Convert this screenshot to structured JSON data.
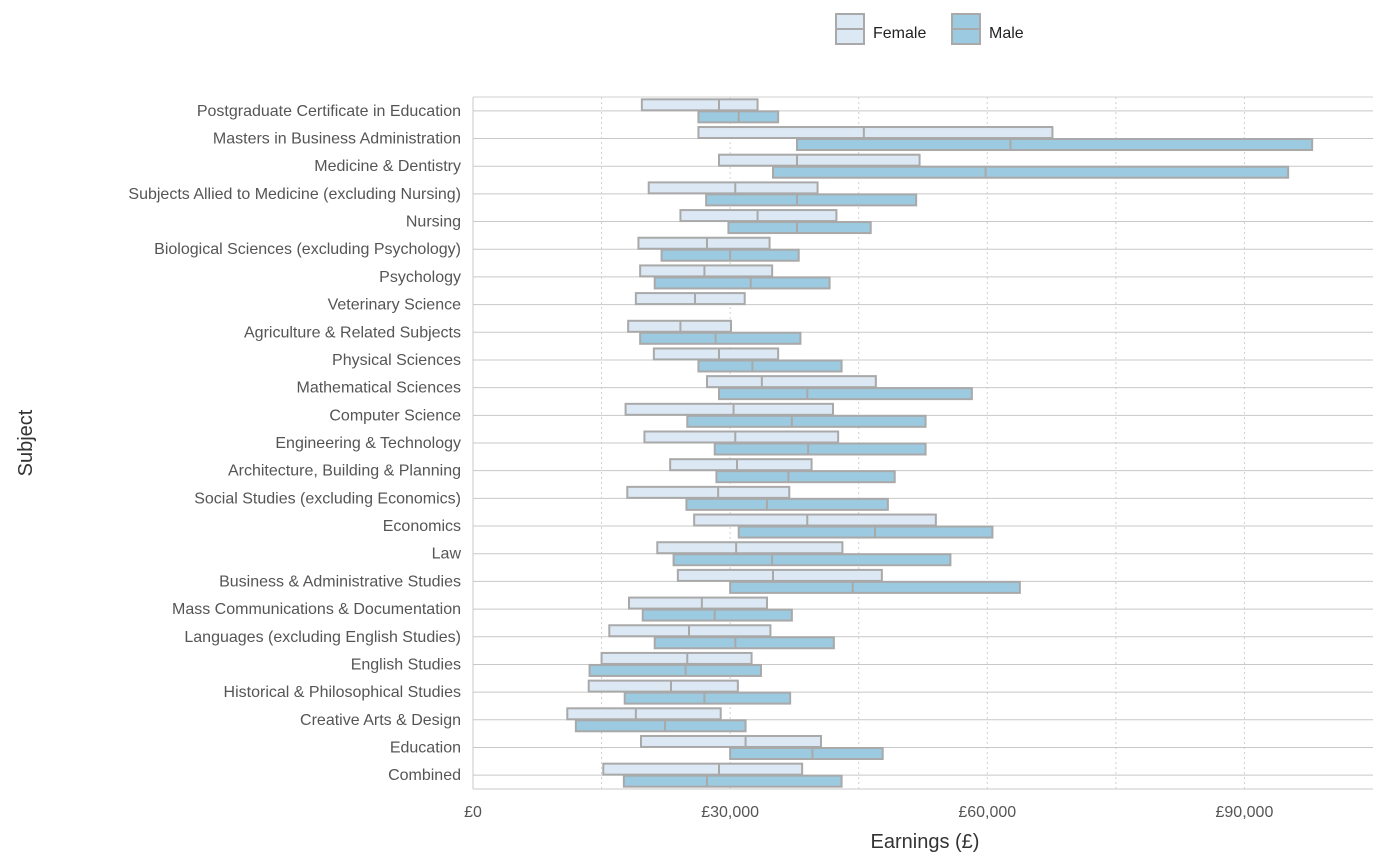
{
  "chart_data": {
    "type": "bar",
    "chart_style": "horizontal grouped range bars (lower quartile, median, upper quartile)",
    "xlabel": "Earnings (£)",
    "ylabel": "Subject",
    "xlim": [
      0,
      105000
    ],
    "x_ticks": [
      0,
      30000,
      60000,
      90000
    ],
    "x_tick_labels": [
      "£0",
      "£30,000",
      "£60,000",
      "£90,000"
    ],
    "grid": "dotted vertical lines at 15000 intervals, solid horizontal lines per category",
    "legend_position": "top",
    "categories": [
      "Postgraduate Certificate in Education",
      "Masters in Business Administration",
      "Medicine & Dentistry",
      "Subjects Allied to Medicine (excluding Nursing)",
      "Nursing",
      "Biological Sciences (excluding Psychology)",
      "Psychology",
      "Veterinary Science",
      "Agriculture & Related Subjects",
      "Physical Sciences",
      "Mathematical Sciences",
      "Computer Science",
      "Engineering & Technology",
      "Architecture, Building & Planning",
      "Social Studies (excluding Economics)",
      "Economics",
      "Law",
      "Business & Administrative Studies",
      "Mass Communications & Documentation",
      "Languages (excluding English Studies)",
      "English Studies",
      "Historical & Philosophical Studies",
      "Creative Arts & Design",
      "Education",
      "Combined"
    ],
    "series": [
      {
        "name": "Female",
        "color": "#dce8f3",
        "low": [
          19700,
          26300,
          28700,
          20500,
          24200,
          19300,
          19500,
          19000,
          18100,
          21100,
          27300,
          17800,
          20000,
          23000,
          18000,
          25800,
          21500,
          23900,
          18200,
          15900,
          15000,
          13500,
          11000,
          19600,
          15200
        ],
        "median": [
          28700,
          45600,
          37800,
          30600,
          33200,
          27300,
          27000,
          25900,
          24200,
          28700,
          33700,
          30400,
          30600,
          30800,
          28600,
          39000,
          30700,
          35000,
          26700,
          25200,
          25000,
          23100,
          19000,
          31800,
          28700
        ],
        "high": [
          33200,
          67600,
          52100,
          40200,
          42400,
          34600,
          34900,
          31700,
          30100,
          35600,
          47000,
          42000,
          42600,
          39500,
          36900,
          54000,
          43100,
          47700,
          34300,
          34700,
          32500,
          30900,
          28900,
          40600,
          38400
        ]
      },
      {
        "name": "Male",
        "color": "#9ccae0",
        "low": [
          26300,
          null,
          35000,
          27200,
          29800,
          22000,
          21200,
          null,
          19500,
          26300,
          28700,
          25000,
          28200,
          28400,
          24900,
          31000,
          23400,
          30000,
          19800,
          21200,
          13600,
          17700,
          12000,
          30000,
          17600
        ],
        "median": [
          31000,
          62700,
          59800,
          37800,
          37800,
          30000,
          32400,
          null,
          28300,
          32600,
          39000,
          37200,
          39100,
          36800,
          34300,
          46900,
          34900,
          44300,
          28200,
          30600,
          24800,
          27000,
          22400,
          39600,
          27300
        ],
        "high": [
          35600,
          97900,
          95100,
          51700,
          46400,
          38000,
          41600,
          null,
          38200,
          43000,
          58200,
          52800,
          52800,
          49200,
          48400,
          60600,
          55700,
          63800,
          37200,
          42100,
          33600,
          37000,
          31800,
          47800,
          43000
        ]
      }
    ],
    "male_mba_low": 37800
  }
}
